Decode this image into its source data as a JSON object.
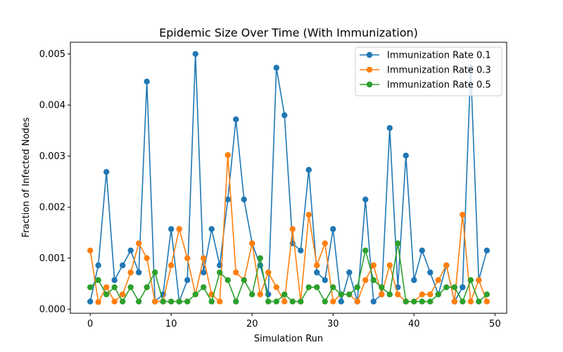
{
  "chart_data": {
    "type": "line",
    "title": "Epidemic Size Over Time (With Immunization)",
    "xlabel": "Simulation Run",
    "ylabel": "Fraction of Infected Nodes",
    "xlim": [
      -2.45,
      51.45
    ],
    "ylim": [
      -8e-05,
      0.00523
    ],
    "xticks": [
      0,
      10,
      20,
      30,
      40,
      50
    ],
    "yticks": [
      0.0,
      0.001,
      0.002,
      0.003,
      0.004,
      0.005
    ],
    "ytick_labels": [
      "0.000",
      "0.001",
      "0.002",
      "0.003",
      "0.004",
      "0.005"
    ],
    "legend_position": "top-right",
    "grid": false,
    "x": [
      0,
      1,
      2,
      3,
      4,
      5,
      6,
      7,
      8,
      9,
      10,
      11,
      12,
      13,
      14,
      15,
      16,
      17,
      18,
      19,
      20,
      21,
      22,
      23,
      24,
      25,
      26,
      27,
      28,
      29,
      30,
      31,
      32,
      33,
      34,
      35,
      36,
      37,
      38,
      39,
      40,
      41,
      42,
      43,
      44,
      45,
      46,
      47,
      48,
      49
    ],
    "series": [
      {
        "name": "Immunization Rate 0.1",
        "color": "#1f77b4",
        "values": [
          0.00015,
          0.00086,
          0.00269,
          0.00057,
          0.00086,
          0.00115,
          0.00072,
          0.00446,
          0.00015,
          0.00029,
          0.00157,
          0.00015,
          0.00057,
          0.005,
          0.00072,
          0.00157,
          0.00086,
          0.00215,
          0.00372,
          0.00215,
          0.00129,
          0.00086,
          0.00029,
          0.00473,
          0.0038,
          0.00129,
          0.00115,
          0.00273,
          0.00072,
          0.00057,
          0.00157,
          0.00015,
          0.00072,
          0.00015,
          0.00215,
          0.00015,
          0.00029,
          0.00355,
          0.00043,
          0.00301,
          0.00057,
          0.00115,
          0.00072,
          0.00029,
          0.00086,
          0.00015,
          0.00043,
          0.00473,
          0.00057,
          0.00115
        ]
      },
      {
        "name": "Immunization Rate 0.3",
        "color": "#ff7f0e",
        "values": [
          0.00115,
          0.00014,
          0.00043,
          0.00015,
          0.00029,
          0.00072,
          0.00129,
          0.001,
          0.00015,
          0.00015,
          0.00086,
          0.00157,
          0.001,
          0.00029,
          0.001,
          0.00029,
          0.00015,
          0.00302,
          0.00072,
          0.00057,
          0.00129,
          0.00029,
          0.00072,
          0.00043,
          0.00015,
          0.00157,
          0.00015,
          0.00185,
          0.00086,
          0.00129,
          0.00015,
          0.00029,
          0.00029,
          0.00015,
          0.00057,
          0.00086,
          0.00029,
          0.00086,
          0.00029,
          0.00015,
          0.00015,
          0.00029,
          0.00029,
          0.00057,
          0.00086,
          0.00015,
          0.00185,
          0.00015,
          0.00057,
          0.00015
        ]
      },
      {
        "name": "Immunization Rate 0.5",
        "color": "#2ca02c",
        "values": [
          0.00043,
          0.00057,
          0.00029,
          0.00043,
          0.00015,
          0.00043,
          0.00015,
          0.00043,
          0.00072,
          0.00015,
          0.00015,
          0.00015,
          0.00015,
          0.00029,
          0.00043,
          0.00015,
          0.00072,
          0.00057,
          0.00015,
          0.00057,
          0.00029,
          0.001,
          0.00015,
          0.00015,
          0.00029,
          0.00015,
          0.00015,
          0.00043,
          0.00043,
          0.00015,
          0.00043,
          0.00029,
          0.00029,
          0.00043,
          0.00115,
          0.00057,
          0.00043,
          0.00029,
          0.00129,
          0.00015,
          0.00015,
          0.00015,
          0.00015,
          0.00029,
          0.00043,
          0.00043,
          0.00015,
          0.00057,
          0.00015,
          0.00029
        ]
      }
    ]
  }
}
